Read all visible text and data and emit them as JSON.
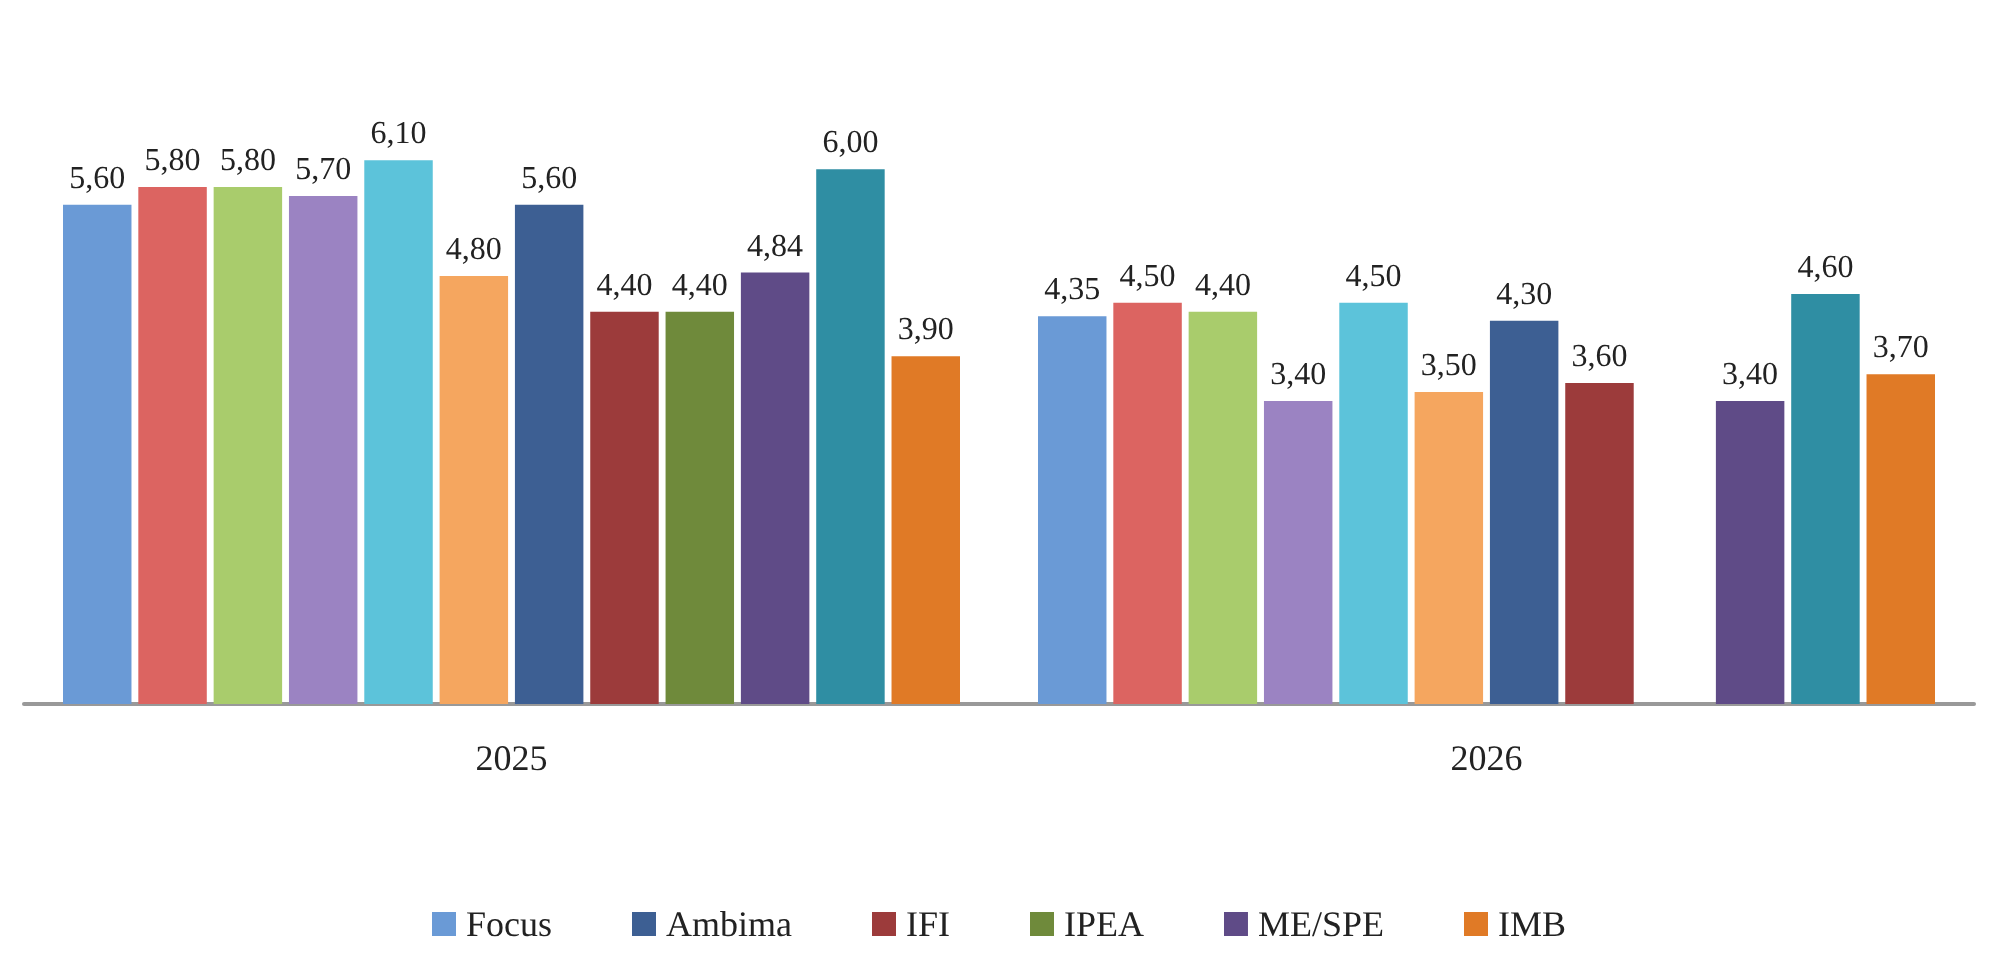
{
  "chart_data": {
    "type": "bar",
    "categories": [
      "2025",
      "2026"
    ],
    "legend": "bottom",
    "series": [
      {
        "name": "Focus",
        "color": "#6a9ad6",
        "values": [
          5.6,
          4.35
        ],
        "value_labels": [
          "5,60",
          "4,35"
        ]
      },
      {
        "color": "#dc6461",
        "values": [
          5.8,
          4.5
        ],
        "value_labels": [
          "5,80",
          "4,50"
        ]
      },
      {
        "color": "#a9cc6c",
        "values": [
          5.8,
          4.4
        ],
        "value_labels": [
          "5,80",
          "4,40"
        ]
      },
      {
        "color": "#9b83c2",
        "values": [
          5.7,
          3.4
        ],
        "value_labels": [
          "5,70",
          "3,40"
        ]
      },
      {
        "color": "#5cc3da",
        "values": [
          6.1,
          4.5
        ],
        "value_labels": [
          "6,10",
          "4,50"
        ]
      },
      {
        "color": "#f5a65f",
        "values": [
          4.8,
          3.5
        ],
        "value_labels": [
          "4,80",
          "3,50"
        ]
      },
      {
        "name": "Ambima",
        "color": "#3d5f93",
        "values": [
          5.6,
          4.3
        ],
        "value_labels": [
          "5,60",
          "4,30"
        ]
      },
      {
        "name": "IFI",
        "color": "#9c3b3b",
        "values": [
          4.4,
          3.6
        ],
        "value_labels": [
          "4,40",
          "3,60"
        ]
      },
      {
        "name": "IPEA",
        "color": "#6f8a3b",
        "values": [
          4.4,
          null
        ],
        "value_labels": [
          "4,40",
          null
        ]
      },
      {
        "name": "ME/SPE",
        "color": "#5f4b87",
        "values": [
          4.84,
          3.4
        ],
        "value_labels": [
          "4,84",
          "3,40"
        ]
      },
      {
        "color": "#2f8ea3",
        "values": [
          6.0,
          4.6
        ],
        "value_labels": [
          "6,00",
          "4,60"
        ]
      },
      {
        "name": "IMB",
        "color": "#e07a26",
        "values": [
          3.9,
          3.7
        ],
        "value_labels": [
          "3,90",
          "3,70"
        ]
      }
    ]
  }
}
